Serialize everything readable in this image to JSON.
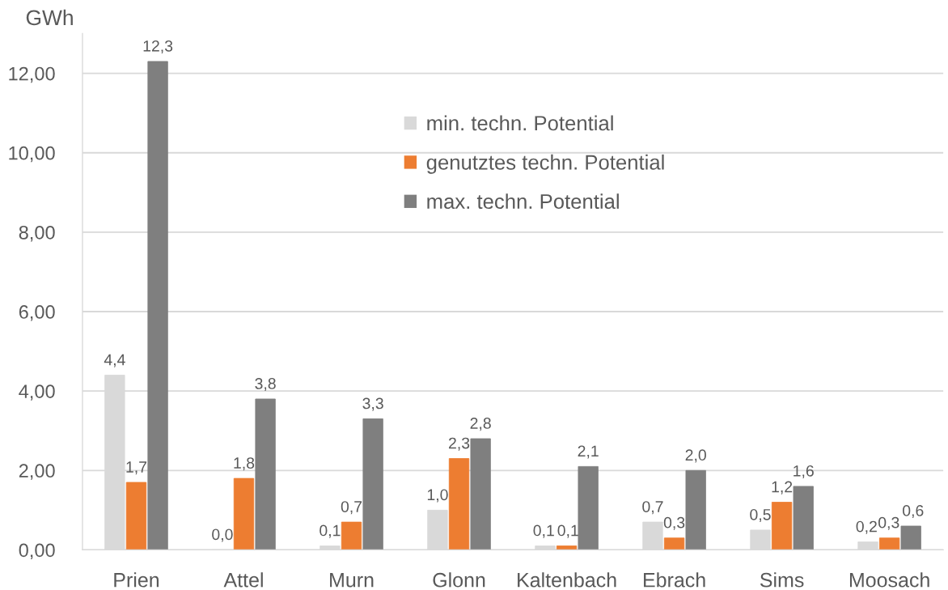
{
  "chart_data": {
    "type": "bar",
    "ylabel": "GWh",
    "categories": [
      "Prien",
      "Attel",
      "Murn",
      "Glonn",
      "Kaltenbach",
      "Ebrach",
      "Sims",
      "Moosach"
    ],
    "series": [
      {
        "name": "min. techn. Potential",
        "color": "#d9d9d9",
        "values": [
          4.4,
          0.0,
          0.1,
          1.0,
          0.1,
          0.7,
          0.5,
          0.2
        ],
        "value_labels": [
          "4,4",
          "0,0",
          "0,1",
          "1,0",
          "0,1",
          "0,7",
          "0,5",
          "0,2"
        ]
      },
      {
        "name": "genutztes techn. Potential",
        "color": "#ed7d31",
        "values": [
          1.7,
          1.8,
          0.7,
          2.3,
          0.1,
          0.3,
          1.2,
          0.3
        ],
        "value_labels": [
          "1,7",
          "1,8",
          "0,7",
          "2,3",
          "0,1",
          "0,3",
          "1,2",
          "0,3"
        ]
      },
      {
        "name": "max. techn. Potential",
        "color": "#7f7f7f",
        "values": [
          12.3,
          3.8,
          3.3,
          2.8,
          2.1,
          2.0,
          1.6,
          0.6
        ],
        "value_labels": [
          "12,3",
          "3,8",
          "3,3",
          "2,8",
          "2,1",
          "2,0",
          "1,6",
          "0,6"
        ]
      }
    ],
    "ylim": [
      0,
      13
    ],
    "yticks": [
      {
        "value": 0,
        "label": "0,00"
      },
      {
        "value": 2,
        "label": "2,00"
      },
      {
        "value": 4,
        "label": "4,00"
      },
      {
        "value": 6,
        "label": "6,00"
      },
      {
        "value": 8,
        "label": "8,00"
      },
      {
        "value": 10,
        "label": "10,00"
      },
      {
        "value": 12,
        "label": "12,00"
      }
    ],
    "grid": "y",
    "legend": "top"
  }
}
